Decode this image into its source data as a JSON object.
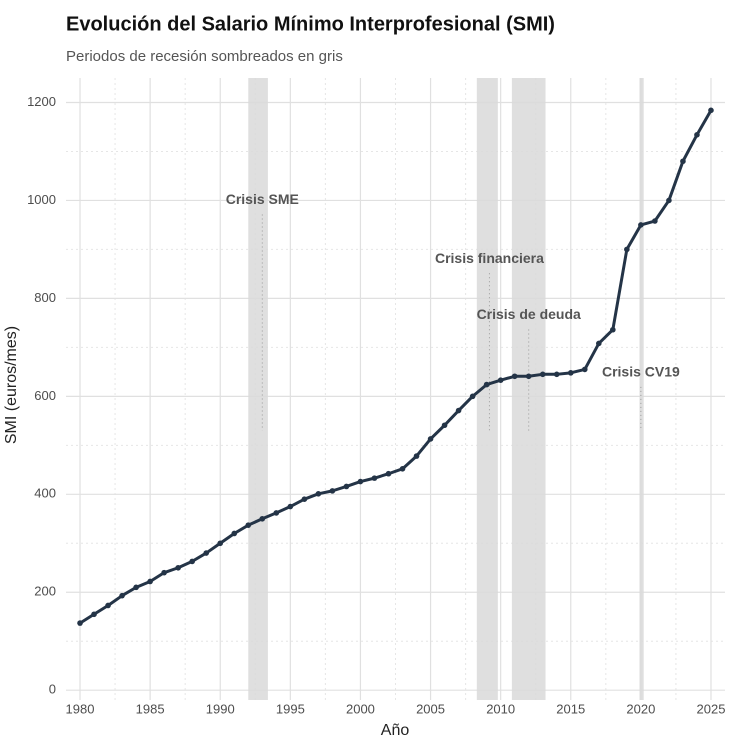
{
  "chart_data": {
    "type": "line",
    "title": "Evolución del Salario Mínimo Interprofesional (SMI)",
    "subtitle": "Periodos de recesión sombreados en gris",
    "x_label": "Año",
    "y_label": "SMI (euros/mes)",
    "x": [
      1980,
      1981,
      1982,
      1983,
      1984,
      1985,
      1986,
      1987,
      1988,
      1989,
      1990,
      1991,
      1992,
      1993,
      1994,
      1995,
      1996,
      1997,
      1998,
      1999,
      2000,
      2001,
      2002,
      2003,
      2004,
      2005,
      2006,
      2007,
      2008,
      2009,
      2010,
      2011,
      2012,
      2013,
      2014,
      2015,
      2016,
      2017,
      2018,
      2019,
      2020,
      2021,
      2022,
      2023,
      2024,
      2025
    ],
    "series": [
      {
        "name": "SMI",
        "color": "#243447",
        "values": [
          137,
          155,
          173,
          193,
          210,
          222,
          240,
          250,
          263,
          280,
          300,
          320,
          337,
          350,
          362,
          375,
          390,
          401,
          407,
          416,
          426,
          433,
          442,
          452,
          478,
          513,
          541,
          571,
          600,
          624,
          633,
          641,
          641,
          645,
          645,
          648,
          655,
          708,
          736,
          900,
          950,
          958,
          1000,
          1080,
          1134,
          1184
        ]
      }
    ],
    "recessions": [
      {
        "start": 1992.0,
        "end": 1993.4
      },
      {
        "start": 2008.3,
        "end": 2009.8
      },
      {
        "start": 2010.8,
        "end": 2013.2
      },
      {
        "start": 2019.9,
        "end": 2020.2
      }
    ],
    "annotations": [
      {
        "label": "Crisis SME",
        "x": 1993,
        "y": 1000
      },
      {
        "label": "Crisis financiera",
        "x": 2009.2,
        "y": 880
      },
      {
        "label": "Crisis de deuda",
        "x": 2012,
        "y": 765
      },
      {
        "label": "Crisis CV19",
        "x": 2020,
        "y": 648
      }
    ],
    "xlim": [
      1979,
      2026
    ],
    "ylim": [
      -20,
      1250
    ],
    "xticks": [
      1980,
      1985,
      1990,
      1995,
      2000,
      2005,
      2010,
      2015,
      2020,
      2025
    ],
    "yticks": [
      0,
      200,
      400,
      600,
      800,
      1000,
      1200
    ],
    "grid": true
  }
}
